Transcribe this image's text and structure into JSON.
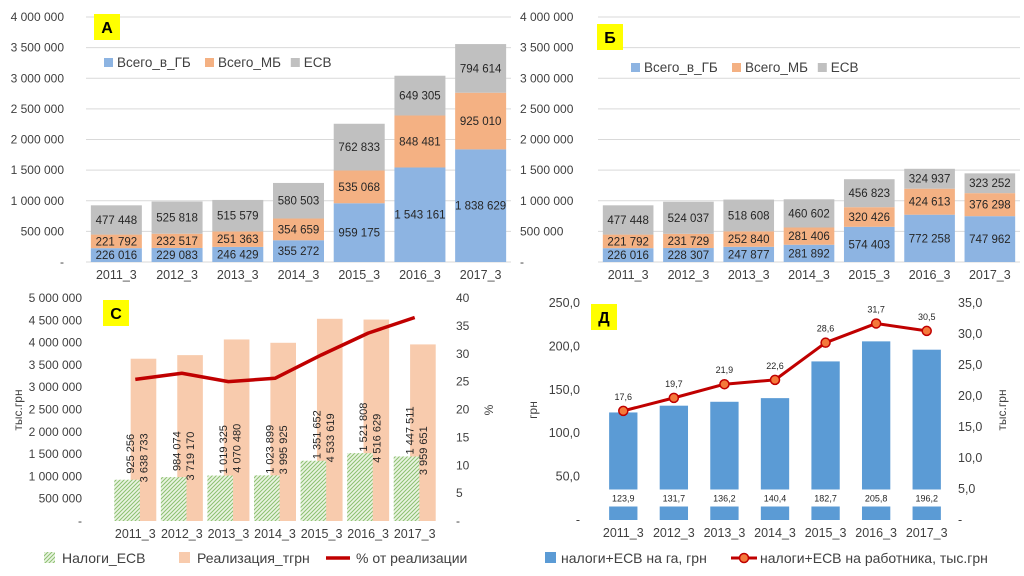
{
  "chart_data": [
    {
      "type": "bar",
      "stacked": true,
      "panel_label": "А",
      "categories": [
        "2011_3",
        "2012_3",
        "2013_3",
        "2014_3",
        "2015_3",
        "2016_3",
        "2017_3"
      ],
      "series": [
        {
          "name": "Всего_в_ГБ",
          "values": [
            226016,
            229083,
            246429,
            355272,
            959175,
            1543161,
            1838629
          ],
          "labels": [
            "226 016",
            "229 083",
            "246 429",
            "355 272",
            "959 175",
            "1 543 161",
            "1 838 629"
          ]
        },
        {
          "name": "Всего_МБ",
          "values": [
            221792,
            232517,
            251363,
            354659,
            535068,
            848481,
            925010
          ],
          "labels": [
            "221 792",
            "232 517",
            "251 363",
            "354 659",
            "535 068",
            "848 481",
            "925 010"
          ]
        },
        {
          "name": "ЕСВ",
          "values": [
            477448,
            525818,
            515579,
            580503,
            762833,
            649305,
            794614
          ],
          "labels": [
            "477 448",
            "525 818",
            "515 579",
            "580 503",
            "762 833",
            "649 305",
            "794 614"
          ]
        }
      ],
      "ylim": [
        0,
        4000000
      ],
      "yticks": [
        "-",
        "500 000",
        "1 000 000",
        "1 500 000",
        "2 000 000",
        "2 500 000",
        "3 000 000",
        "3 500 000",
        "4 000 000"
      ],
      "legend_position": "top-left",
      "colors": [
        "#8db4e2",
        "#f4b183",
        "#c0c0c0"
      ]
    },
    {
      "type": "bar",
      "stacked": true,
      "panel_label": "Б",
      "categories": [
        "2011_3",
        "2012_3",
        "2013_3",
        "2014_3",
        "2015_3",
        "2016_3",
        "2017_3"
      ],
      "series": [
        {
          "name": "Всего_в_ГБ",
          "values": [
            226016,
            228307,
            247877,
            281892,
            574403,
            772258,
            747962
          ],
          "labels": [
            "226 016",
            "228 307",
            "247 877",
            "281 892",
            "574 403",
            "772 258",
            "747 962"
          ]
        },
        {
          "name": "Всего_МБ",
          "values": [
            221792,
            231729,
            252840,
            281406,
            320426,
            424613,
            376298
          ],
          "labels": [
            "221 792",
            "231 729",
            "252 840",
            "281 406",
            "320 426",
            "424 613",
            "376 298"
          ]
        },
        {
          "name": "ЕСВ",
          "values": [
            477448,
            524037,
            518608,
            460602,
            456823,
            324937,
            323252
          ],
          "labels": [
            "477 448",
            "524 037",
            "518 608",
            "460 602",
            "456 823",
            "324 937",
            "323 252"
          ]
        }
      ],
      "ylim": [
        0,
        4000000
      ],
      "yticks": [
        "-",
        "500 000",
        "1 000 000",
        "1 500 000",
        "2 000 000",
        "2 500 000",
        "3 000 000",
        "3 500 000",
        "4 000 000"
      ],
      "legend_position": "top",
      "colors": [
        "#8db4e2",
        "#f4b183",
        "#c0c0c0"
      ]
    },
    {
      "type": "bar+line",
      "panel_label": "С",
      "categories": [
        "2011_3",
        "2012_3",
        "2013_3",
        "2014_3",
        "2015_3",
        "2016_3",
        "2017_3"
      ],
      "ylabel": "тыс.грн",
      "y2label": "%",
      "ylim": [
        0,
        5000000
      ],
      "y2lim": [
        0,
        40
      ],
      "yticks": [
        "-",
        "500 000",
        "1 000 000",
        "1 500 000",
        "2 000 000",
        "2 500 000",
        "3 000 000",
        "3 500 000",
        "4 000 000",
        "4 500 000",
        "5 000 000"
      ],
      "y2ticks": [
        "-",
        "5",
        "10",
        "15",
        "20",
        "25",
        "30",
        "35",
        "40"
      ],
      "series": [
        {
          "name": "Налоги_ЕСВ",
          "kind": "bar-hatched",
          "values": [
            925256,
            984074,
            1019325,
            1023899,
            1351652,
            1521808,
            1447511
          ],
          "labels": [
            "925 256",
            "984 074",
            "1 019 325",
            "1 023 899",
            "1 351 652",
            "1 521 808",
            "1 447 511"
          ]
        },
        {
          "name": "Реализация_тгрн",
          "kind": "bar",
          "values": [
            3638733,
            3719170,
            4070480,
            3995925,
            4533619,
            4516629,
            3959651
          ],
          "labels": [
            "3 638 733",
            "3 719 170",
            "4 070 480",
            "3 995 925",
            "4 533 619",
            "4 516 629",
            "3 959 651"
          ]
        },
        {
          "name": "% от реализации",
          "kind": "line",
          "axis": "right",
          "values": [
            25.4,
            26.5,
            25.0,
            25.6,
            29.8,
            33.7,
            36.5
          ]
        }
      ],
      "legend_position": "bottom",
      "colors": [
        "#a9d18e",
        "#f8cbad",
        "#c00000"
      ]
    },
    {
      "type": "bar+line",
      "panel_label": "Д",
      "categories": [
        "2011_3",
        "2012_3",
        "2013_3",
        "2014_3",
        "2015_3",
        "2016_3",
        "2017_3"
      ],
      "ylabel": "грн",
      "y2label": "тыс.грн",
      "ylim": [
        0,
        250
      ],
      "y2lim": [
        0,
        35
      ],
      "yticks": [
        "-",
        "50,0",
        "100,0",
        "150,0",
        "200,0",
        "250,0"
      ],
      "y2ticks": [
        "-",
        "5,0",
        "10,0",
        "15,0",
        "20,0",
        "25,0",
        "30,0",
        "35,0"
      ],
      "series": [
        {
          "name": "налоги+ЕСВ на га, грн",
          "kind": "bar",
          "values": [
            123.9,
            131.7,
            136.2,
            140.4,
            182.7,
            205.8,
            196.2
          ],
          "labels": [
            "123,9",
            "131,7",
            "136,2",
            "140,4",
            "182,7",
            "205,8",
            "196,2"
          ]
        },
        {
          "name": "налоги+ЕСВ на работника, тыс.грн",
          "kind": "line-marker",
          "axis": "right",
          "values": [
            17.6,
            19.7,
            21.9,
            22.6,
            28.6,
            31.7,
            30.5
          ],
          "labels": [
            "17,6",
            "19,7",
            "21,9",
            "22,6",
            "28,6",
            "31,7",
            "30,5"
          ]
        }
      ],
      "legend_position": "bottom",
      "colors": [
        "#5b9bd5",
        "#c00000",
        "#f4793b"
      ]
    }
  ]
}
